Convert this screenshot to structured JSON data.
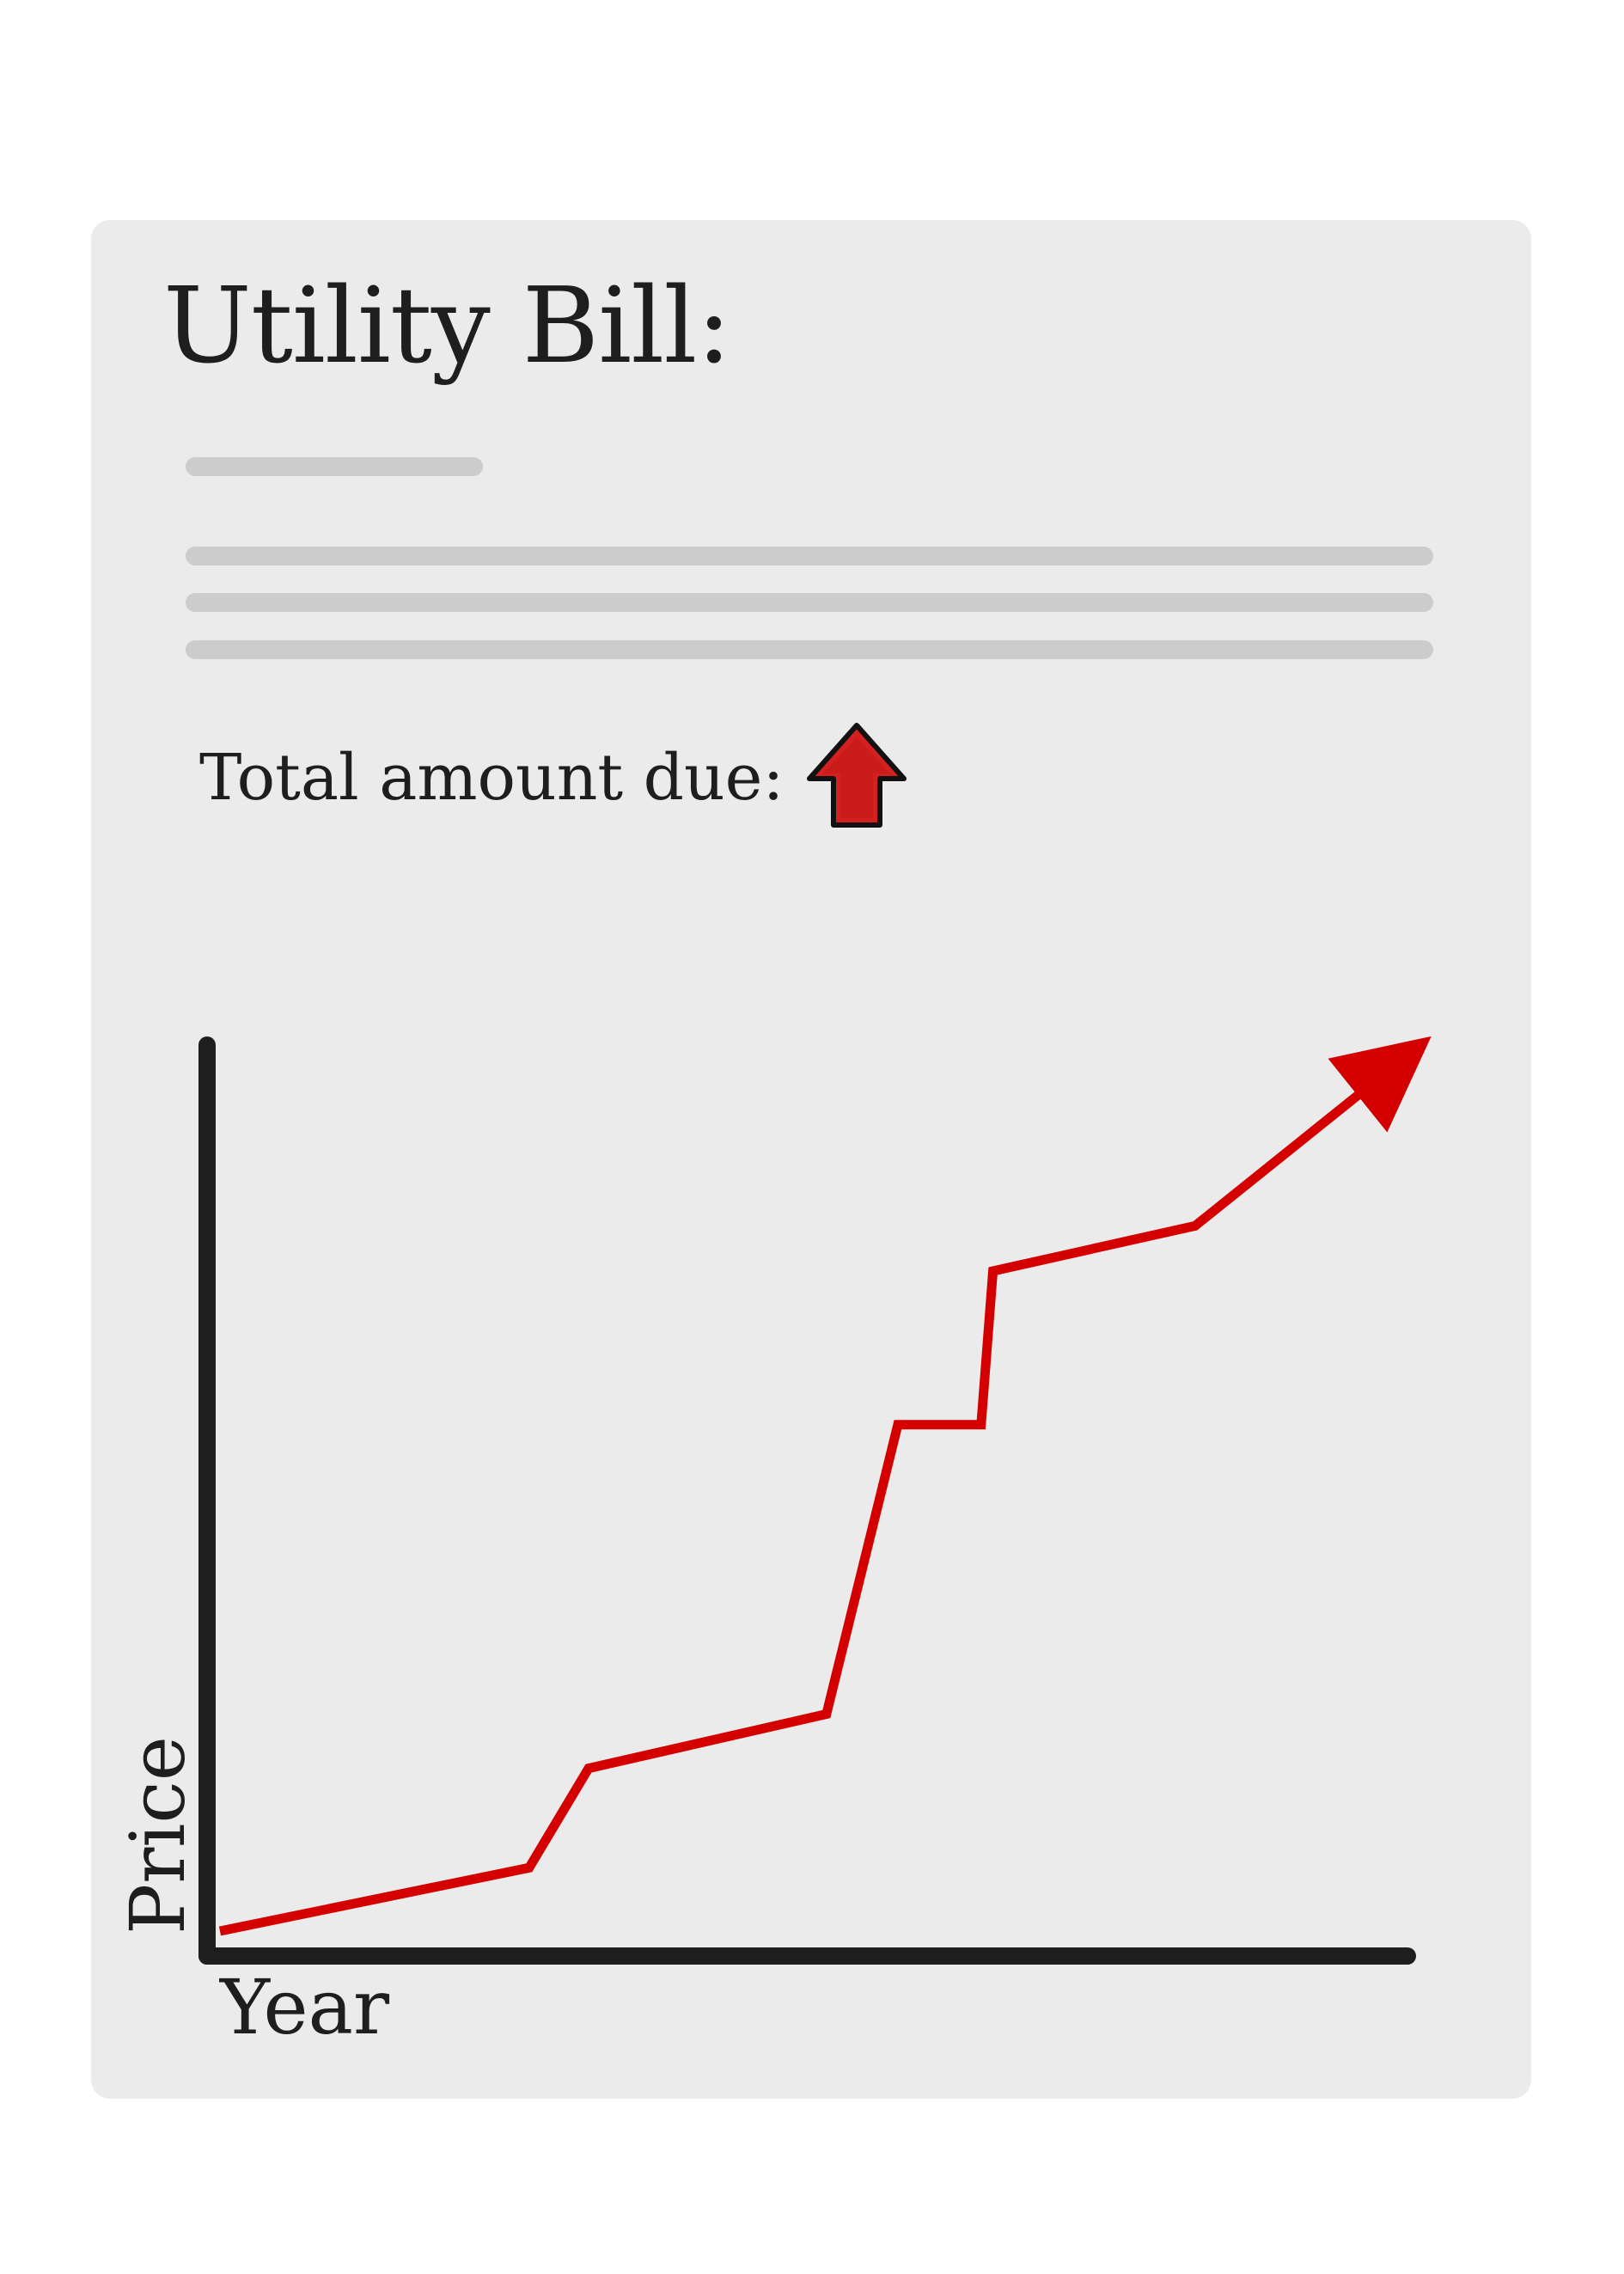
{
  "document": {
    "title": "Utility Bill:",
    "amount_label": "Total amount due:",
    "amount_icon": "up-arrow-icon"
  },
  "colors": {
    "card_background": "#ebebeb",
    "placeholder": "#cccccc",
    "text": "#1e1e1e",
    "axis": "#1e1e1e",
    "trend": "#d40000",
    "arrow_fill": "#d42020"
  },
  "chart_data": {
    "type": "line",
    "title": "",
    "xlabel": "Year",
    "ylabel": "Price",
    "grid": false,
    "legend": "none",
    "xlim": [
      0,
      100
    ],
    "ylim": [
      0,
      100
    ],
    "series": [
      {
        "x": [
          0,
          26,
          31,
          51,
          57,
          64,
          65,
          82,
          100
        ],
        "y": [
          2,
          9,
          20,
          26,
          58,
          58,
          75,
          80,
          99
        ]
      }
    ]
  }
}
